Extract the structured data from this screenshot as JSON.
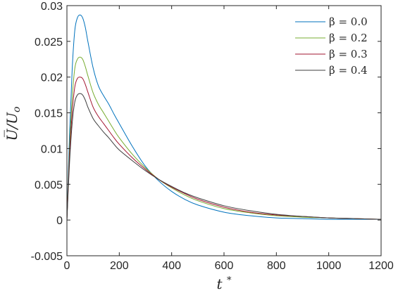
{
  "chart_data": {
    "type": "line",
    "title": "",
    "xlabel": "t*",
    "ylabel": "U̅/U",
    "ylabel_sub": "o",
    "xlim": [
      0,
      1200
    ],
    "ylim": [
      -0.005,
      0.03
    ],
    "xticks": [
      0,
      200,
      400,
      600,
      800,
      1000,
      1200
    ],
    "yticks": [
      -0.005,
      0,
      0.005,
      0.01,
      0.015,
      0.02,
      0.025,
      0.03
    ],
    "xtick_labels": [
      "0",
      "200",
      "400",
      "600",
      "800",
      "1000",
      "1200"
    ],
    "ytick_labels": [
      "-0.005",
      "0",
      "0.005",
      "0.01",
      "0.015",
      "0.02",
      "0.025",
      "0.03"
    ],
    "grid": false,
    "legend_position": "top-right",
    "series": [
      {
        "name": "β = 0.0",
        "color": "#0072bd",
        "x": [
          0,
          10,
          20,
          30,
          40,
          50,
          60,
          70,
          80,
          100,
          120,
          140,
          160,
          180,
          200,
          250,
          300,
          350,
          400,
          450,
          500,
          600,
          700,
          800,
          900,
          1000,
          1100,
          1200
        ],
        "y": [
          0,
          0.012,
          0.021,
          0.0265,
          0.0283,
          0.0287,
          0.0283,
          0.027,
          0.025,
          0.0213,
          0.0188,
          0.0174,
          0.0162,
          0.0148,
          0.0135,
          0.0103,
          0.0075,
          0.0055,
          0.004,
          0.0029,
          0.0021,
          0.0011,
          0.0006,
          0.0003,
          0.0002,
          0.0001,
          0.0001,
          0.0001
        ]
      },
      {
        "name": "β = 0.2",
        "color": "#77ac30",
        "x": [
          0,
          10,
          20,
          30,
          40,
          50,
          60,
          70,
          80,
          100,
          120,
          140,
          160,
          180,
          200,
          250,
          300,
          350,
          400,
          450,
          500,
          600,
          700,
          800,
          900,
          1000,
          1100,
          1200
        ],
        "y": [
          0,
          0.01,
          0.017,
          0.0212,
          0.0225,
          0.0228,
          0.0225,
          0.0215,
          0.0202,
          0.0178,
          0.0162,
          0.015,
          0.0138,
          0.0126,
          0.0115,
          0.0092,
          0.0073,
          0.0057,
          0.0045,
          0.0035,
          0.0027,
          0.0016,
          0.001,
          0.0006,
          0.0004,
          0.0003,
          0.0002,
          0.0001
        ]
      },
      {
        "name": "β = 0.3",
        "color": "#a2142f",
        "x": [
          0,
          10,
          20,
          30,
          40,
          50,
          60,
          70,
          80,
          100,
          120,
          140,
          160,
          180,
          200,
          250,
          300,
          350,
          400,
          450,
          500,
          600,
          700,
          800,
          900,
          1000,
          1100,
          1200
        ],
        "y": [
          0,
          0.009,
          0.015,
          0.0186,
          0.0198,
          0.02,
          0.0198,
          0.019,
          0.0179,
          0.0158,
          0.0145,
          0.0135,
          0.0125,
          0.0115,
          0.0106,
          0.0087,
          0.0071,
          0.0057,
          0.0046,
          0.0037,
          0.0029,
          0.0018,
          0.0011,
          0.0007,
          0.0005,
          0.0003,
          0.0002,
          0.0001
        ]
      },
      {
        "name": "β = 0.4",
        "color": "#3d3d3d",
        "x": [
          0,
          10,
          20,
          30,
          40,
          50,
          60,
          70,
          80,
          100,
          120,
          140,
          160,
          180,
          200,
          250,
          300,
          350,
          400,
          450,
          500,
          600,
          700,
          800,
          900,
          1000,
          1100,
          1200
        ],
        "y": [
          0,
          0.008,
          0.0135,
          0.0165,
          0.0175,
          0.0177,
          0.0175,
          0.0168,
          0.0158,
          0.0142,
          0.0132,
          0.0123,
          0.0115,
          0.0106,
          0.0098,
          0.0083,
          0.0069,
          0.0057,
          0.0047,
          0.0038,
          0.0031,
          0.002,
          0.0013,
          0.0008,
          0.0005,
          0.0003,
          0.0002,
          0.0001
        ]
      }
    ]
  }
}
